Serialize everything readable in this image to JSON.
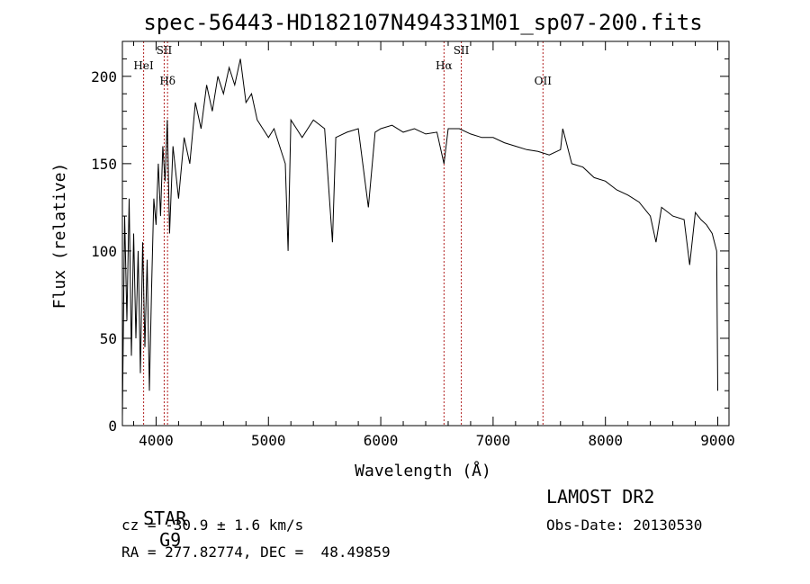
{
  "chart_data": {
    "type": "line",
    "title": "spec-56443-HD182107N494331M01_sp07-200.fits",
    "xlabel": "Wavelength (Å)",
    "ylabel": "Flux (relative)",
    "xlim": [
      3700,
      9100
    ],
    "ylim": [
      0,
      220
    ],
    "xticks": [
      4000,
      5000,
      6000,
      7000,
      8000,
      9000
    ],
    "yticks": [
      0,
      50,
      100,
      150,
      200
    ],
    "grid": false,
    "line_color": "#000000",
    "marker_color": "#b22222",
    "series": [
      {
        "x": [
          3700,
          3720,
          3740,
          3760,
          3780,
          3800,
          3820,
          3840,
          3860,
          3880,
          3900,
          3920,
          3940,
          3960,
          3980,
          4000,
          4020,
          4040,
          4060,
          4080,
          4100,
          4120,
          4150,
          4200,
          4250,
          4300,
          4350,
          4400,
          4450,
          4500,
          4550,
          4600,
          4650,
          4700,
          4750,
          4800,
          4850,
          4900,
          4950,
          5000,
          5050,
          5100,
          5150,
          5175,
          5200,
          5250,
          5300,
          5400,
          5500,
          5570,
          5600,
          5700,
          5800,
          5890,
          5950,
          6000,
          6100,
          6200,
          6300,
          6400,
          6500,
          6563,
          6600,
          6700,
          6800,
          6900,
          7000,
          7100,
          7200,
          7300,
          7400,
          7500,
          7600,
          7620,
          7700,
          7800,
          7900,
          8000,
          8100,
          8200,
          8300,
          8400,
          8450,
          8500,
          8600,
          8700,
          8750,
          8800,
          8850,
          8900,
          8950,
          8990,
          9000
        ],
        "y": [
          5,
          120,
          60,
          130,
          40,
          110,
          50,
          100,
          30,
          105,
          45,
          95,
          20,
          80,
          130,
          115,
          150,
          120,
          160,
          140,
          175,
          110,
          160,
          130,
          165,
          150,
          185,
          170,
          195,
          180,
          200,
          190,
          205,
          195,
          210,
          185,
          190,
          175,
          170,
          165,
          170,
          160,
          150,
          100,
          175,
          170,
          165,
          175,
          170,
          105,
          165,
          168,
          170,
          125,
          168,
          170,
          172,
          168,
          170,
          167,
          168,
          150,
          170,
          170,
          167,
          165,
          165,
          162,
          160,
          158,
          157,
          155,
          158,
          170,
          150,
          148,
          142,
          140,
          135,
          132,
          128,
          120,
          105,
          125,
          120,
          118,
          92,
          122,
          118,
          115,
          110,
          100,
          20
        ]
      }
    ],
    "markers": [
      {
        "label": "HeI",
        "x": 3889
      },
      {
        "label": "SII",
        "x": 4072
      },
      {
        "label": "Hδ",
        "x": 4102
      },
      {
        "label": "Hα",
        "x": 6563
      },
      {
        "label": "SII",
        "x": 6717
      },
      {
        "label": "OII",
        "x": 7444
      }
    ]
  },
  "info": {
    "class": "STAR",
    "subclass": "G9",
    "survey": "LAMOST DR2",
    "cz": "cz = -30.9 ± 1.6 km/s",
    "obs_date": "Obs-Date: 20130530",
    "coords": "RA = 277.82774, DEC =  48.49859"
  }
}
